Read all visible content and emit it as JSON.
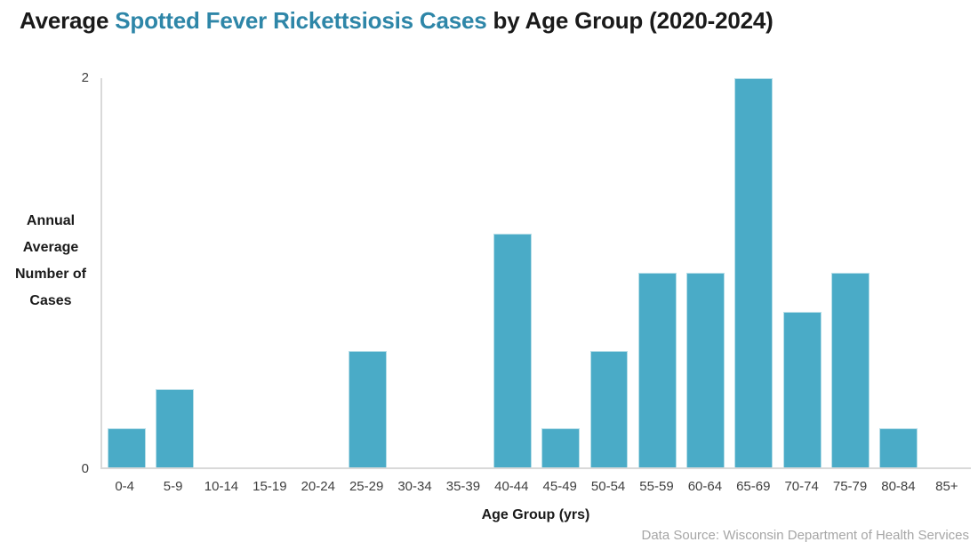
{
  "title": {
    "prefix": "Average ",
    "highlight": "Spotted Fever Rickettsiosis Cases",
    "suffix": " by Age Group (2020-2024)"
  },
  "chart_data": {
    "type": "bar",
    "title": "Average Spotted Fever Rickettsiosis Cases by Age Group (2020-2024)",
    "categories": [
      "0-4",
      "5-9",
      "10-14",
      "15-19",
      "20-24",
      "25-29",
      "30-34",
      "35-39",
      "40-44",
      "45-49",
      "50-54",
      "55-59",
      "60-64",
      "65-69",
      "70-74",
      "75-79",
      "80-84",
      "85+"
    ],
    "values": [
      0.2,
      0.4,
      0,
      0,
      0,
      0.6,
      0,
      0,
      1.2,
      0.2,
      0.6,
      1,
      1,
      2,
      0.8,
      1,
      0.2,
      0
    ],
    "xlabel": "Age Group (yrs)",
    "ylabel": "Annual Average Number of Cases",
    "ylim": [
      0,
      2
    ],
    "yticks": [
      0,
      2
    ],
    "grid": false,
    "legend_position": "none",
    "bar_color": "#4aabc7",
    "bar_border_color": "#b7dee8"
  },
  "y_axis": {
    "title_text": "Annual\nAverage\nNumber of\nCases",
    "tick_top": "2",
    "tick_bottom": "0"
  },
  "x_axis": {
    "title": "Age Group (yrs)"
  },
  "source": "Data Source: Wisconsin Department of Health Services",
  "colors": {
    "title_text": "#1a1a1a",
    "title_highlight": "#2e86a8",
    "bar_fill": "#4aabc7",
    "bar_border": "#b7dee8",
    "axis_line": "#d9d9d9",
    "tick_text": "#404040",
    "source_text": "#a6a6a6",
    "background": "#ffffff"
  }
}
